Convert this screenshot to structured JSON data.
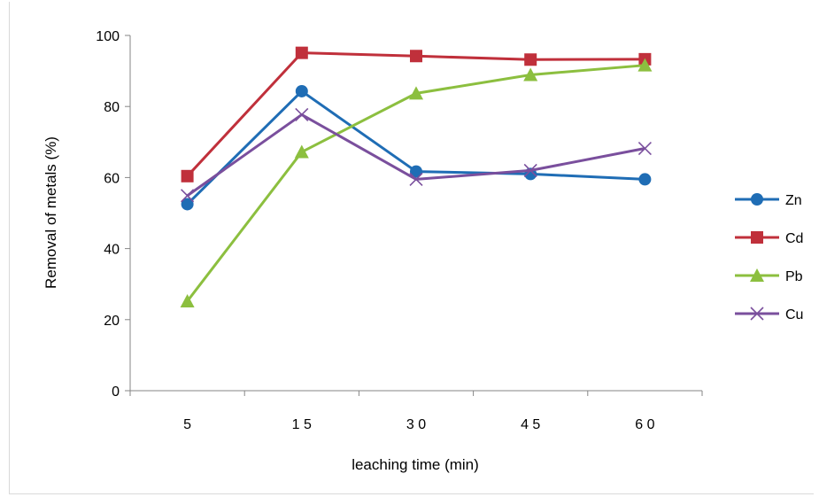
{
  "chart_data": {
    "type": "line",
    "categories": [
      "5",
      "15",
      "30",
      "45",
      "60"
    ],
    "series": [
      {
        "name": "Zn",
        "values": [
          52.5,
          84.3,
          61.7,
          61.0,
          59.5
        ],
        "color": "#1f6db5",
        "marker": "circle"
      },
      {
        "name": "Cd",
        "values": [
          60.4,
          95.1,
          94.2,
          93.2,
          93.3
        ],
        "color": "#c0303b",
        "marker": "square"
      },
      {
        "name": "Pb",
        "values": [
          25.2,
          67.2,
          83.7,
          88.9,
          91.6
        ],
        "color": "#8cbf3f",
        "marker": "triangle"
      },
      {
        "name": "Cu",
        "values": [
          54.9,
          77.7,
          59.5,
          62.0,
          68.2
        ],
        "color": "#7a4f9d",
        "marker": "x"
      }
    ],
    "xlabel": "leaching time (min)",
    "ylabel": "Removal of metals (%)",
    "ylim": [
      0,
      100
    ],
    "yticks": [
      "0",
      "20",
      "40",
      "60",
      "80",
      "100"
    ],
    "xtick_labels": [
      "5",
      "1 5",
      "3 0",
      "4 5",
      "6 0"
    ],
    "grid": false,
    "legend_position": "right"
  }
}
